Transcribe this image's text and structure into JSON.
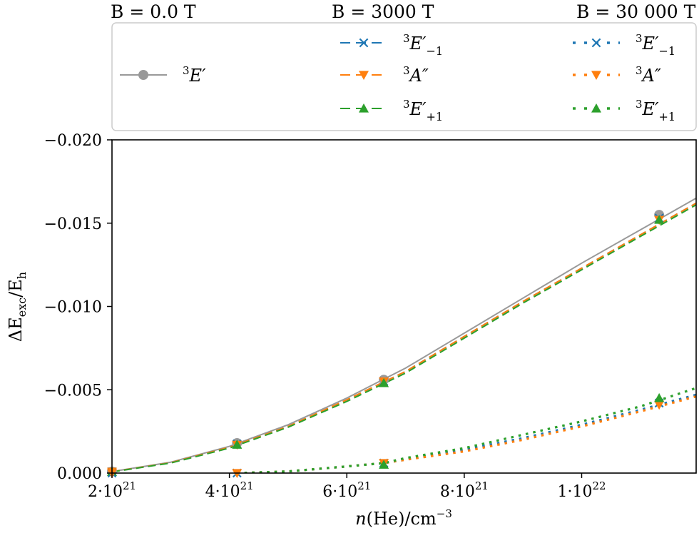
{
  "chart_data": {
    "type": "line",
    "xlabel": "n(He)/cm",
    "xlabel_exp": "−3",
    "ylabel": "ΔE",
    "ylabel_sub": "exc",
    "ylabel_tail": "/E",
    "ylabel_tail_sub": "h",
    "xlim": [
      2e+21,
      1.195e+22
    ],
    "ylim": [
      0.0,
      -0.02
    ],
    "x_ticks": [
      {
        "value": 2e+21,
        "mant": "2·10",
        "exp": "21"
      },
      {
        "value": 4e+21,
        "mant": "4·10",
        "exp": "21"
      },
      {
        "value": 6e+21,
        "mant": "6·10",
        "exp": "21"
      },
      {
        "value": 8e+21,
        "mant": "8·10",
        "exp": "21"
      },
      {
        "value": 1e+22,
        "mant": "1·10",
        "exp": "22"
      }
    ],
    "y_ticks": [
      {
        "value": 0.0,
        "label": "0.000"
      },
      {
        "value": -0.005,
        "label": "−0.005"
      },
      {
        "value": -0.01,
        "label": "−0.010"
      },
      {
        "value": -0.015,
        "label": "−0.015"
      },
      {
        "value": -0.02,
        "label": "−0.020"
      }
    ],
    "legend": {
      "columns": [
        {
          "title": "B = 0.0 T"
        },
        {
          "title": "B = 3000 T"
        },
        {
          "title": "B = 30 000 T"
        }
      ]
    },
    "series": [
      {
        "name": "³E′",
        "group": "B=0.0 T",
        "color": "#999999",
        "linestyle": "solid",
        "marker": "circle",
        "x": [
          2e+21,
          3e+21,
          4e+21,
          5e+21,
          6e+21,
          7e+21,
          8e+21,
          9e+21,
          1e+22,
          1.1e+22,
          1.195e+22
        ],
        "y": [
          -9e-05,
          -0.00065,
          -0.0016,
          -0.0029,
          -0.0045,
          -0.0063,
          -0.0084,
          -0.0105,
          -0.0126,
          -0.0146,
          -0.0165
        ],
        "marker_x": [
          2e+21,
          4.13e+21,
          6.63e+21,
          1.132e+22
        ],
        "marker_y": [
          -9e-05,
          -0.0018,
          -0.0056,
          -0.0155
        ]
      },
      {
        "name": "³E′₋₁",
        "group": "B=3000 T",
        "color": "#1f77b4",
        "linestyle": "dashed",
        "marker": "x",
        "x": [
          2e+21,
          3e+21,
          4e+21,
          5e+21,
          6e+21,
          7e+21,
          8e+21,
          9e+21,
          1e+22,
          1.1e+22,
          1.195e+22
        ],
        "y": [
          -8e-05,
          -0.00062,
          -0.00155,
          -0.0028,
          -0.0044,
          -0.0061,
          -0.0082,
          -0.0103,
          -0.0123,
          -0.0143,
          -0.0162
        ],
        "marker_x": [
          2e+21,
          4.13e+21,
          6.63e+21,
          1.132e+22
        ],
        "marker_y": [
          -8e-05,
          -0.00175,
          -0.0055,
          -0.0153
        ]
      },
      {
        "name": "³A″",
        "group": "B=3000 T",
        "color": "#ff7f0e",
        "linestyle": "dashed",
        "marker": "triangle-down",
        "x": [
          2e+21,
          3e+21,
          4e+21,
          5e+21,
          6e+21,
          7e+21,
          8e+21,
          9e+21,
          1e+22,
          1.1e+22,
          1.195e+22
        ],
        "y": [
          -8e-05,
          -0.00062,
          -0.00155,
          -0.0028,
          -0.0044,
          -0.0061,
          -0.0082,
          -0.0103,
          -0.0123,
          -0.0143,
          -0.0162
        ],
        "marker_x": [
          2e+21,
          4.13e+21,
          6.63e+21,
          1.132e+22
        ],
        "marker_y": [
          -8e-05,
          -0.0017,
          -0.0055,
          -0.0152
        ]
      },
      {
        "name": "³E′₊₁",
        "group": "B=3000 T",
        "color": "#2ca02c",
        "linestyle": "dashed",
        "marker": "triangle-up",
        "x": [
          2e+21,
          3e+21,
          4e+21,
          5e+21,
          6e+21,
          7e+21,
          8e+21,
          9e+21,
          1e+22,
          1.1e+22,
          1.195e+22
        ],
        "y": [
          -7e-05,
          -0.0006,
          -0.0015,
          -0.00275,
          -0.0043,
          -0.006,
          -0.0081,
          -0.0102,
          -0.0122,
          -0.0142,
          -0.0161
        ],
        "marker_x": [
          2e+21,
          4.13e+21,
          6.63e+21,
          1.132e+22
        ],
        "marker_y": [
          -7e-05,
          -0.0017,
          -0.0054,
          -0.0152
        ]
      },
      {
        "name": "³E′₋₁",
        "group": "B=30 000 T",
        "color": "#1f77b4",
        "linestyle": "dotted",
        "marker": "x",
        "x": [
          4.13e+21,
          5e+21,
          6e+21,
          6.63e+21,
          7e+21,
          8e+21,
          9e+21,
          1e+22,
          1.1e+22,
          1.195e+22
        ],
        "y": [
          0.0,
          -0.0001,
          -0.0004,
          -0.0006,
          -0.0008,
          -0.0014,
          -0.0021,
          -0.0029,
          -0.0038,
          -0.0047
        ],
        "marker_x": [
          2e+21,
          4.13e+21,
          6.63e+21,
          1.132e+22
        ],
        "marker_y": [
          0.0,
          0.0,
          -0.0006,
          -0.0042
        ]
      },
      {
        "name": "³A″",
        "group": "B=30 000 T",
        "color": "#ff7f0e",
        "linestyle": "dotted",
        "marker": "triangle-down",
        "x": [
          4.13e+21,
          5e+21,
          6e+21,
          6.63e+21,
          7e+21,
          8e+21,
          9e+21,
          1e+22,
          1.1e+22,
          1.195e+22
        ],
        "y": [
          0.0,
          -0.0001,
          -0.0004,
          -0.0006,
          -0.0008,
          -0.0013,
          -0.002,
          -0.0028,
          -0.0037,
          -0.0046
        ],
        "marker_x": [
          2e+21,
          4.13e+21,
          6.63e+21,
          1.132e+22
        ],
        "marker_y": [
          0.0,
          0.0,
          -0.0006,
          -0.0041
        ]
      },
      {
        "name": "³E′₊₁",
        "group": "B=30 000 T",
        "color": "#2ca02c",
        "linestyle": "dotted",
        "marker": "triangle-up",
        "x": [
          4.13e+21,
          5e+21,
          6e+21,
          6.63e+21,
          7e+21,
          8e+21,
          9e+21,
          1e+22,
          1.1e+22,
          1.195e+22
        ],
        "y": [
          0.0,
          -0.0001,
          -0.0004,
          -0.0006,
          -0.0009,
          -0.0015,
          -0.0023,
          -0.0031,
          -0.004,
          -0.0051
        ],
        "marker_x": [
          6.63e+21,
          1.132e+22
        ],
        "marker_y": [
          -0.0005,
          -0.0045
        ]
      }
    ],
    "legend_entries": [
      {
        "col": 0,
        "row": 1,
        "base": "E",
        "prime": "′",
        "sub": "",
        "sup": "3",
        "series": 0
      },
      {
        "col": 1,
        "row": 0,
        "base": "E",
        "prime": "′",
        "sub": "−1",
        "sup": "3",
        "series": 1
      },
      {
        "col": 1,
        "row": 1,
        "base": "A",
        "prime": "″",
        "sub": "",
        "sup": "3",
        "series": 2
      },
      {
        "col": 1,
        "row": 2,
        "base": "E",
        "prime": "′",
        "sub": "+1",
        "sup": "3",
        "series": 3
      },
      {
        "col": 2,
        "row": 0,
        "base": "E",
        "prime": "′",
        "sub": "−1",
        "sup": "3",
        "series": 4
      },
      {
        "col": 2,
        "row": 1,
        "base": "A",
        "prime": "″",
        "sub": "",
        "sup": "3",
        "series": 5
      },
      {
        "col": 2,
        "row": 2,
        "base": "E",
        "prime": "′",
        "sub": "+1",
        "sup": "3",
        "series": 6
      }
    ],
    "grid": false,
    "legend_position": "top"
  }
}
